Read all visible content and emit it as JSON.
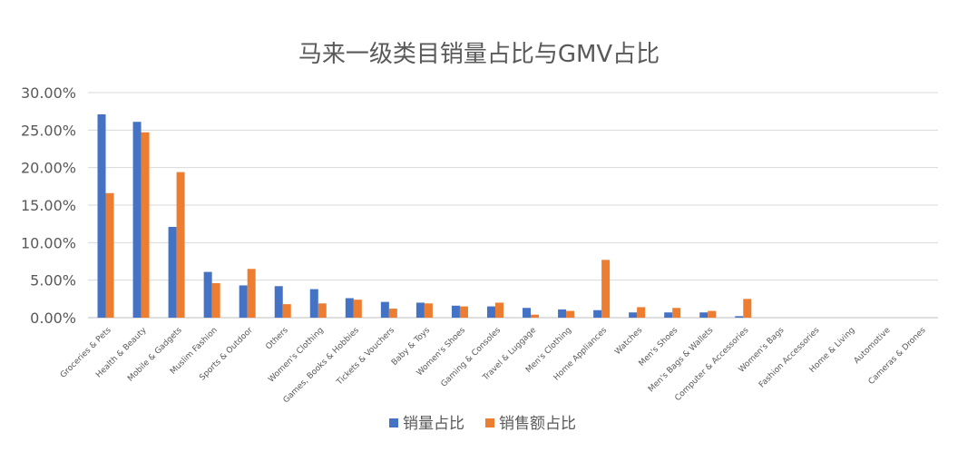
{
  "chart_data": {
    "type": "bar",
    "title": "马来一级类目销量占比与GMV占比",
    "xlabel": "",
    "ylabel": "",
    "ylim": [
      0,
      30
    ],
    "y_ticks": [
      "0.00%",
      "5.00%",
      "10.00%",
      "15.00%",
      "20.00%",
      "25.00%",
      "30.00%"
    ],
    "grid": true,
    "legend_position": "bottom",
    "categories": [
      "Groceries & Pets",
      "Health & Beauty",
      "Mobile & Gadgets",
      "Muslim Fashion",
      "Sports & Outdoor",
      "Others",
      "Women's Clothing",
      "Games, Books & Hobbies",
      "Tickets & Vouchers",
      "Baby & Toys",
      "Women's Shoes",
      "Gaming & Consoles",
      "Travel & Luggage",
      "Men's Clothing",
      "Home Appliances",
      "Watches",
      "Men's Shoes",
      "Men's Bags & Wallets",
      "Computer & Accessories",
      "Women's Bags",
      "Fashion Accessories",
      "Home & Living",
      "Automotive",
      "Cameras & Drones"
    ],
    "series": [
      {
        "name": "销量占比",
        "color": "#4472C4",
        "values": [
          27.1,
          26.1,
          12.1,
          6.1,
          4.3,
          4.2,
          3.8,
          2.6,
          2.1,
          2.0,
          1.6,
          1.5,
          1.3,
          1.1,
          1.0,
          0.7,
          0.7,
          0.7,
          0.2,
          0,
          0,
          0,
          0,
          0
        ]
      },
      {
        "name": "销售额占比",
        "color": "#ED7D31",
        "values": [
          16.6,
          24.7,
          19.4,
          4.6,
          6.5,
          1.8,
          1.9,
          2.4,
          1.2,
          1.9,
          1.5,
          2.0,
          0.4,
          0.9,
          7.7,
          1.4,
          1.3,
          0.9,
          2.5,
          0,
          0,
          0,
          0,
          0
        ]
      }
    ]
  }
}
